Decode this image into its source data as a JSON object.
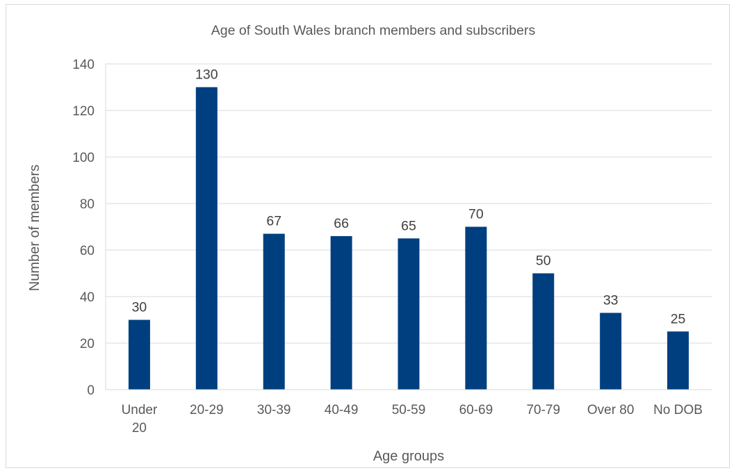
{
  "chart_data": {
    "type": "bar",
    "title": "Age of South Wales branch members and subscribers",
    "xlabel": "Age groups",
    "ylabel": "Number of members",
    "categories": [
      "Under 20",
      "20-29",
      "30-39",
      "40-49",
      "50-59",
      "60-69",
      "70-79",
      "Over 80",
      "No DOB"
    ],
    "category_lines": [
      [
        "Under",
        "20"
      ],
      [
        "20-29"
      ],
      [
        "30-39"
      ],
      [
        "40-49"
      ],
      [
        "50-59"
      ],
      [
        "60-69"
      ],
      [
        "70-79"
      ],
      [
        "Over 80"
      ],
      [
        "No DOB"
      ]
    ],
    "values": [
      30,
      130,
      67,
      66,
      65,
      70,
      50,
      33,
      25
    ],
    "data_labels": [
      "30",
      "130",
      "67",
      "66",
      "65",
      "70",
      "50",
      "33",
      "25"
    ],
    "yticks": [
      "0",
      "20",
      "40",
      "60",
      "80",
      "100",
      "120",
      "140"
    ],
    "ylim": [
      0,
      140
    ],
    "grid": true,
    "legend": "none",
    "colors": {
      "bar": "#003f7f",
      "grid": "#d9d9d9",
      "text": "#595959"
    }
  }
}
